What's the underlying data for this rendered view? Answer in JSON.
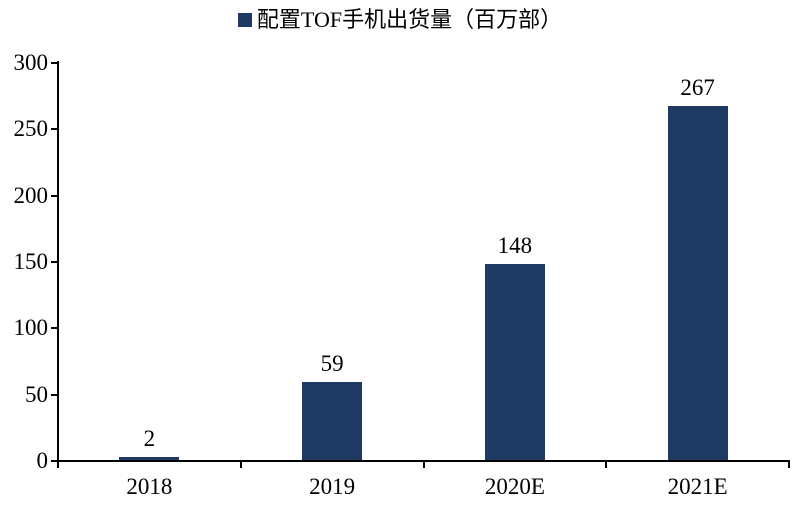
{
  "chart_data": {
    "type": "bar",
    "title": "配置TOF手机出货量（百万部）",
    "series_name": "配置TOF手机出货量（百万部）",
    "categories": [
      "2018",
      "2019",
      "2020E",
      "2021E"
    ],
    "values": [
      2,
      59,
      148,
      267
    ],
    "data_labels": [
      "2",
      "59",
      "148",
      "267"
    ],
    "xlabel": "",
    "ylabel": "",
    "ylim": [
      0,
      300
    ],
    "yticks": [
      0,
      50,
      100,
      150,
      200,
      250,
      300
    ],
    "grid": false,
    "legend_position": "top-center",
    "colors": {
      "bar": "#1E3A63",
      "axis": "#000000",
      "text": "#000000",
      "background": "#ffffff"
    }
  }
}
